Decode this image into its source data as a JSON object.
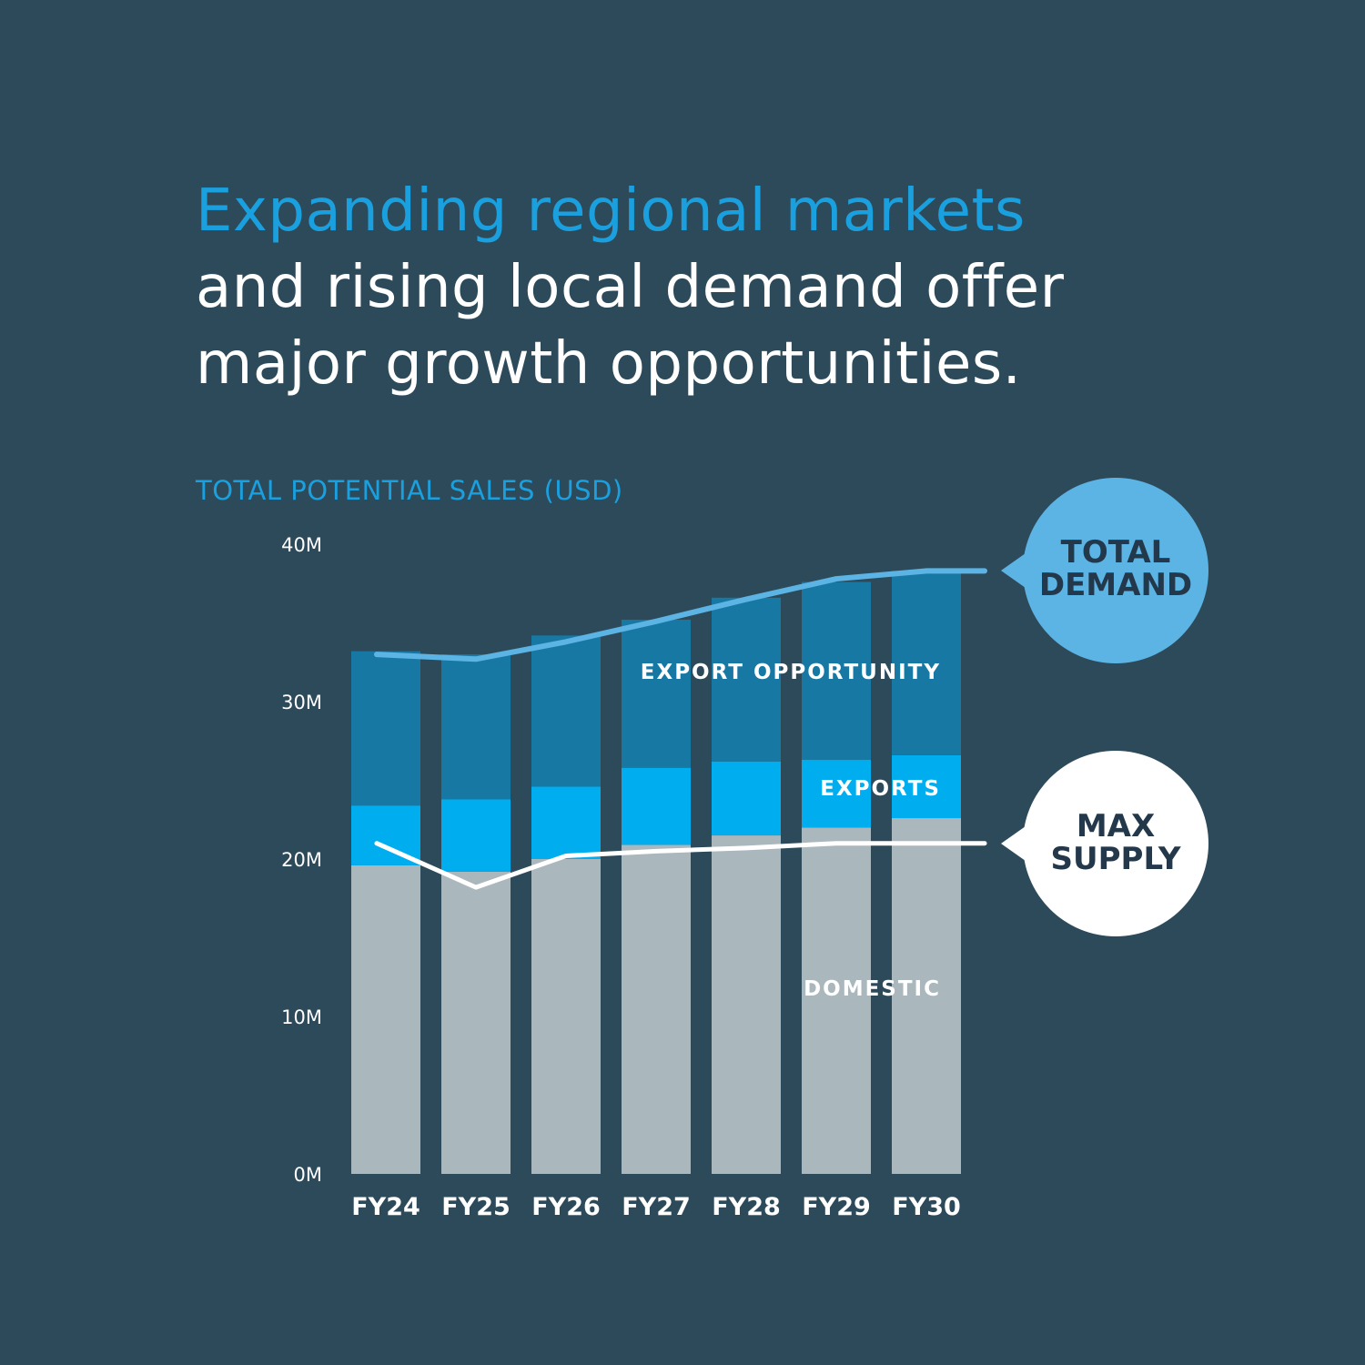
{
  "headline": {
    "accent": "Expanding regional markets",
    "rest_line1": "and rising local demand offer",
    "rest_line2": "major growth opportunities."
  },
  "subtitle": "TOTAL POTENTIAL SALES (USD)",
  "colors": {
    "background": "#2d4a5b",
    "accent": "#1aa0de",
    "domestic": "#aab7bd",
    "exports": "#00aeef",
    "export_opportunity": "#1878a4",
    "total_demand_line": "#5cb4e4",
    "max_supply_line": "#ffffff"
  },
  "chart_data": {
    "type": "bar",
    "stacked": true,
    "title": "",
    "ylabel": "TOTAL POTENTIAL SALES (USD)",
    "ylim": [
      0,
      40
    ],
    "y_unit": "M",
    "y_ticks": [
      "0M",
      "10M",
      "20M",
      "30M",
      "40M"
    ],
    "categories": [
      "FY24",
      "FY25",
      "FY26",
      "FY27",
      "FY28",
      "FY29",
      "FY30"
    ],
    "series": [
      {
        "name": "DOMESTIC",
        "values": [
          19.6,
          19.2,
          20.0,
          20.9,
          21.5,
          22.0,
          22.6
        ]
      },
      {
        "name": "EXPORTS",
        "values": [
          3.8,
          4.6,
          4.6,
          4.9,
          4.7,
          4.3,
          4.0
        ]
      },
      {
        "name": "EXPORT OPPORTUNITY",
        "values": [
          9.8,
          9.2,
          9.6,
          9.4,
          10.4,
          11.3,
          11.7
        ]
      }
    ],
    "lines": [
      {
        "name": "TOTAL DEMAND",
        "values": [
          33.0,
          32.7,
          33.8,
          35.1,
          36.5,
          37.8,
          38.3
        ]
      },
      {
        "name": "MAX SUPPLY",
        "values": [
          21.0,
          18.2,
          20.2,
          20.5,
          20.7,
          21.0,
          21.0
        ]
      }
    ],
    "callouts": [
      "TOTAL DEMAND",
      "MAX SUPPLY"
    ],
    "callout_lines": {
      "total_demand": [
        "TOTAL",
        "DEMAND"
      ],
      "max_supply": [
        "MAX",
        "SUPPLY"
      ]
    },
    "grid": false
  }
}
